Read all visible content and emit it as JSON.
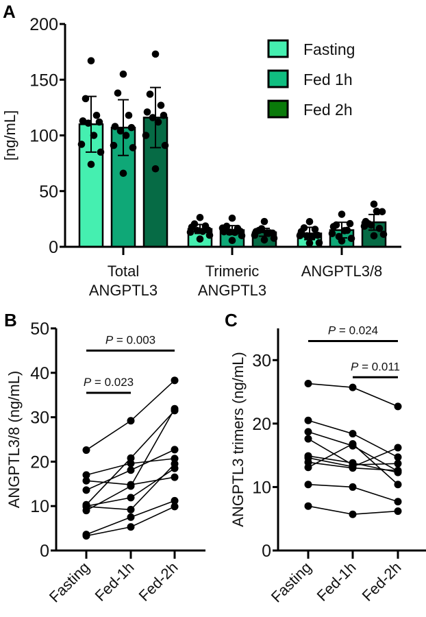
{
  "chart_data": [
    {
      "panel": "A",
      "type": "bar",
      "ylabel": "[ng/mL]",
      "ylim": [
        0,
        200
      ],
      "yticks": [
        "0",
        "50",
        "100",
        "150",
        "200"
      ],
      "categories": [
        "Total\nANGPTL3",
        "Trimeric\nANGPTL3",
        "ANGPTL3/8"
      ],
      "legend": {
        "position": "top-right",
        "entries": [
          "Fasting",
          "Fed 1h",
          "Fed 2h"
        ]
      },
      "colors": [
        "#45EFB0",
        "#0FA877",
        "#066B45"
      ],
      "legend_colors": [
        "#45EFB0",
        "#10BE80",
        "#0A7A0A"
      ],
      "series": [
        {
          "name": "Fasting",
          "values": [
            110,
            16,
            12
          ],
          "sd": [
            25,
            4,
            5.5
          ],
          "points": [
            [
              167,
              133,
              118,
              113,
              112,
              111,
              100,
              92,
              85,
              74
            ],
            [
              26.3,
              20.5,
              18.7,
              17.6,
              14.9,
              14.6,
              13.9,
              13.1,
              10.4,
              7.0
            ],
            [
              22.6,
              17,
              15.7,
              13.6,
              10.3,
              9.9,
              9.0,
              10.0,
              3.6,
              3.3
            ]
          ]
        },
        {
          "name": "Fed 1h",
          "values": [
            107,
            15,
            15
          ],
          "sd": [
            25,
            4,
            7
          ],
          "points": [
            [
              155,
              138,
              118,
              108,
              107,
              104,
              100,
              91,
              89,
              66
            ],
            [
              25.7,
              18.4,
              16.5,
              13.5,
              13.8,
              13.2,
              13.0,
              16.8,
              10.0,
              5.7
            ],
            [
              29.2,
              19.6,
              14.8,
              18.1,
              20.8,
              9.2,
              14.5,
              11.9,
              7.5,
              5.3
            ]
          ]
        },
        {
          "name": "Fed 2h",
          "values": [
            116,
            13,
            22
          ],
          "sd": [
            27,
            3.5,
            7
          ],
          "points": [
            [
              173,
              137,
              127,
              121,
              118,
              116,
              112,
              100,
              91,
              70
            ],
            [
              22.7,
              14.7,
              12.5,
              13.7,
              12.3,
              16.2,
              12.6,
              10.4,
              7.7,
              6.2
            ],
            [
              38.3,
              20.7,
              16.5,
              22.7,
              31.5,
              19.5,
              31.9,
              18.5,
              11.2,
              9.9
            ]
          ]
        }
      ]
    },
    {
      "panel": "B",
      "type": "line",
      "ylabel": "ANGPTL3/8 (ng/mL)",
      "ylim": [
        0,
        50
      ],
      "yticks": [
        "0",
        "10",
        "20",
        "30",
        "40",
        "50"
      ],
      "categories": [
        "Fasting",
        "Fed-1h",
        "Fed-2h"
      ],
      "subjects": [
        [
          22.6,
          29.2,
          38.3
        ],
        [
          17,
          19.6,
          20.7
        ],
        [
          15.7,
          14.8,
          16.5
        ],
        [
          13.6,
          18.1,
          22.7
        ],
        [
          10.3,
          20.8,
          31.5
        ],
        [
          9.9,
          9.2,
          19.5
        ],
        [
          9.0,
          14.5,
          31.9
        ],
        [
          10.0,
          11.9,
          18.5
        ],
        [
          3.6,
          7.5,
          11.2
        ],
        [
          3.3,
          5.3,
          9.9
        ]
      ],
      "comparisons": [
        {
          "from": 0,
          "to": 2,
          "label_p": "P",
          "label_rest": " = 0.003",
          "level": 45
        },
        {
          "from": 0,
          "to": 1,
          "label_p": "P",
          "label_rest": " = 0.023",
          "level": 35.5
        }
      ]
    },
    {
      "panel": "C",
      "type": "line",
      "ylabel": "ANGPTL3 trimers (ng/mL)",
      "ylim": [
        0,
        35
      ],
      "yticks": [
        "0",
        "10",
        "20",
        "30"
      ],
      "categories": [
        "Fasting",
        "Fed-1h",
        "Fed-2h"
      ],
      "subjects": [
        [
          26.3,
          25.7,
          22.7
        ],
        [
          20.5,
          18.4,
          14.7
        ],
        [
          18.7,
          16.5,
          12.5
        ],
        [
          17.6,
          13.5,
          13.7
        ],
        [
          14.9,
          13.8,
          12.3
        ],
        [
          14.6,
          13.2,
          16.2
        ],
        [
          13.9,
          13.0,
          12.6
        ],
        [
          13.1,
          16.8,
          10.4
        ],
        [
          10.4,
          10.0,
          7.7
        ],
        [
          7.0,
          5.7,
          6.2
        ]
      ],
      "comparisons": [
        {
          "from": 0,
          "to": 2,
          "label_p": "P",
          "label_rest": " = 0.024",
          "level": 33
        },
        {
          "from": 1,
          "to": 2,
          "label_p": "P",
          "label_rest": " = 0.011",
          "level": 27.3
        }
      ]
    }
  ]
}
